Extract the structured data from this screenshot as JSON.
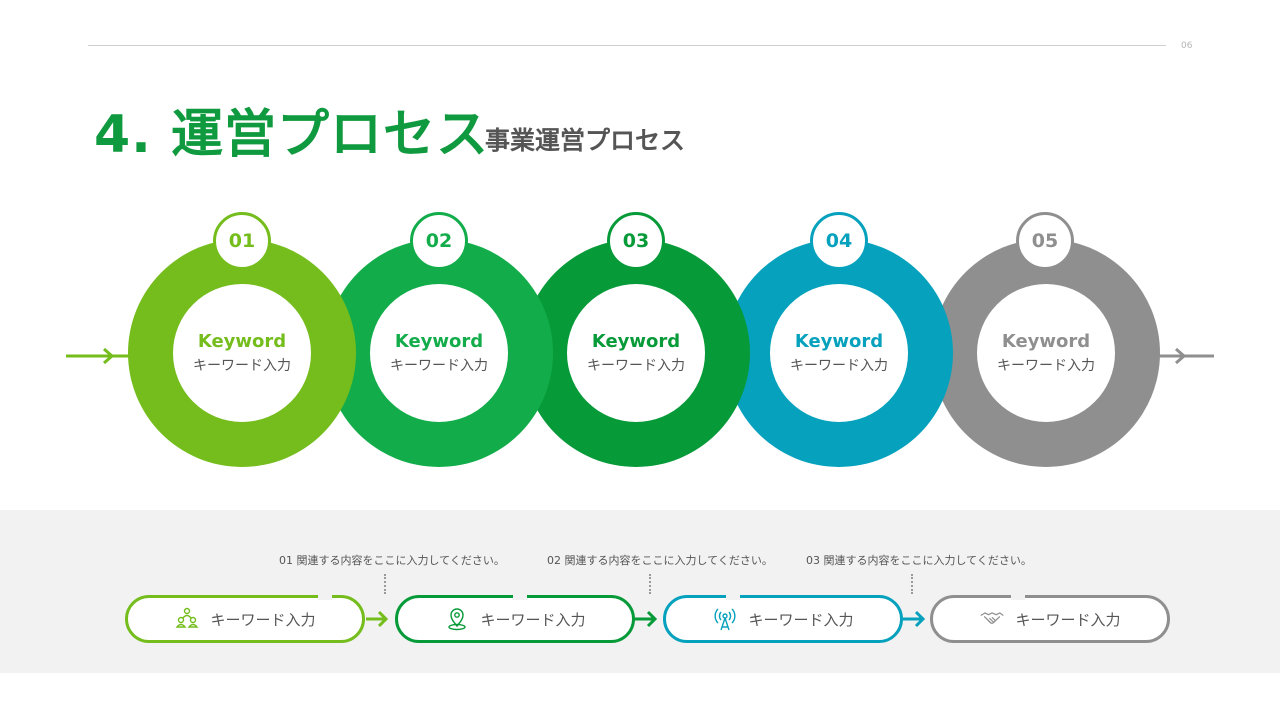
{
  "page_number": "06",
  "header": {
    "title": "4. 運営プロセス",
    "subtitle": "事業運営プロセス"
  },
  "steps": [
    {
      "number": "01",
      "keyword": "Keyword",
      "label": "キーワード入力",
      "color": "#74bd1c"
    },
    {
      "number": "02",
      "keyword": "Keyword",
      "label": "キーワード入力",
      "color": "#12ad4a"
    },
    {
      "number": "03",
      "keyword": "Keyword",
      "label": "キーワード入力",
      "color": "#079a39"
    },
    {
      "number": "04",
      "keyword": "Keyword",
      "label": "キーワード入力",
      "color": "#06a1bd"
    },
    {
      "number": "05",
      "keyword": "Keyword",
      "label": "キーワード入力",
      "color": "#8f8f90"
    }
  ],
  "notes": [
    "01 関連する内容をここに入力してください。",
    "02 関連する内容をここに入力してください。",
    "03 関連する内容をここに入力してください。"
  ],
  "pills": [
    {
      "label": "キーワード入力",
      "icon": "people-icon",
      "color": "#74bd1c"
    },
    {
      "label": "キーワード入力",
      "icon": "location-pin-icon",
      "color": "#079a39"
    },
    {
      "label": "キーワード入力",
      "icon": "antenna-icon",
      "color": "#06a1bd"
    },
    {
      "label": "キーワード入力",
      "icon": "handshake-icon",
      "color": "#8f8f90"
    }
  ]
}
